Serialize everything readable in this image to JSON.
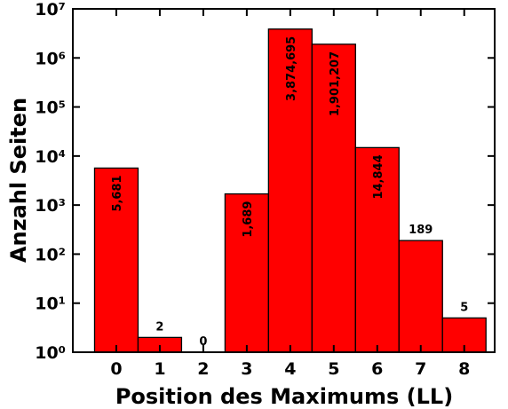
{
  "chart_data": {
    "type": "bar",
    "xlabel": "Position des Maximums (LL)",
    "ylabel": "Anzahl Seiten",
    "x": [
      0,
      1,
      2,
      3,
      4,
      5,
      6,
      7,
      8
    ],
    "values": [
      5681,
      2,
      0,
      1689,
      3874695,
      1901207,
      14844,
      189,
      5
    ],
    "value_labels": [
      "5,681",
      "2",
      "0",
      "1,689",
      "3,874,695",
      "1,901,207",
      "14,844",
      "189",
      "5"
    ],
    "color": "#ff0000",
    "log_y": true,
    "xlim": [
      -1,
      8.7
    ],
    "xticks": [
      0,
      1,
      2,
      3,
      4,
      5,
      6,
      7,
      8
    ],
    "ylim": [
      1,
      10000000
    ],
    "yticks": [
      {
        "value": 1,
        "label": "10⁰"
      },
      {
        "value": 10,
        "label": "10¹"
      },
      {
        "value": 100,
        "label": "10²"
      },
      {
        "value": 1000,
        "label": "10³"
      },
      {
        "value": 10000,
        "label": "10⁴"
      },
      {
        "value": 100000,
        "label": "10⁵"
      },
      {
        "value": 1000000,
        "label": "10⁶"
      },
      {
        "value": 10000000,
        "label": "10⁷"
      }
    ],
    "grid": false
  }
}
